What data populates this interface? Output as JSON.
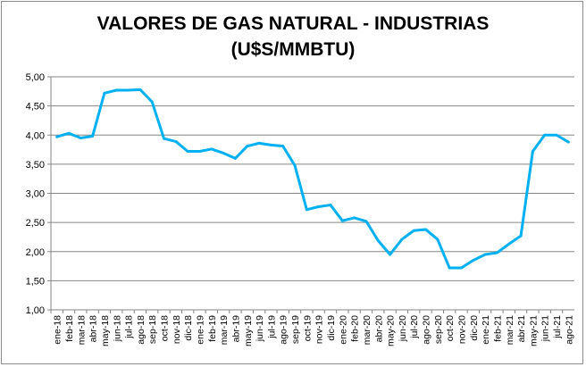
{
  "chart_data": {
    "type": "line",
    "title": [
      "VALORES DE GAS NATURAL - INDUSTRIAS",
      "(U$S/MMBTU)"
    ],
    "xlabel": "",
    "ylabel": "",
    "ylim": [
      1.0,
      5.0
    ],
    "yticks": [
      "1,00",
      "1,50",
      "2,00",
      "2,50",
      "3,00",
      "3,50",
      "4,00",
      "4,50",
      "5,00"
    ],
    "grid": true,
    "legend": "none",
    "line_color": "#00b0f0",
    "categories": [
      "ene-18",
      "feb-18",
      "mar-18",
      "abr-18",
      "may-18",
      "jun-18",
      "jul-18",
      "ago-18",
      "sep-18",
      "oct-18",
      "nov-18",
      "dic-18",
      "ene-19",
      "feb-19",
      "mar-19",
      "abr-19",
      "may-19",
      "jun-19",
      "jul-19",
      "ago-19",
      "sep-19",
      "oct-19",
      "nov-19",
      "dic-19",
      "ene-20",
      "feb-20",
      "mar-20",
      "abr-20",
      "may-20",
      "jun-20",
      "jul-20",
      "ago-20",
      "sep-20",
      "oct-20",
      "nov-20",
      "dic-20",
      "ene-21",
      "feb-21",
      "mar-21",
      "abr-21",
      "may-21",
      "jun-21",
      "jul-21",
      "ago-21"
    ],
    "series": [
      {
        "name": "Industrias",
        "values": [
          3.97,
          4.03,
          3.95,
          3.98,
          4.72,
          4.77,
          4.77,
          4.78,
          4.57,
          3.94,
          3.89,
          3.72,
          3.72,
          3.76,
          3.69,
          3.6,
          3.81,
          3.86,
          3.83,
          3.81,
          3.48,
          2.72,
          2.77,
          2.8,
          2.53,
          2.58,
          2.52,
          2.19,
          1.95,
          2.21,
          2.36,
          2.38,
          2.21,
          1.72,
          1.72,
          1.85,
          1.95,
          1.98,
          2.13,
          2.27,
          3.72,
          4.0,
          4.0,
          3.88
        ]
      }
    ]
  }
}
